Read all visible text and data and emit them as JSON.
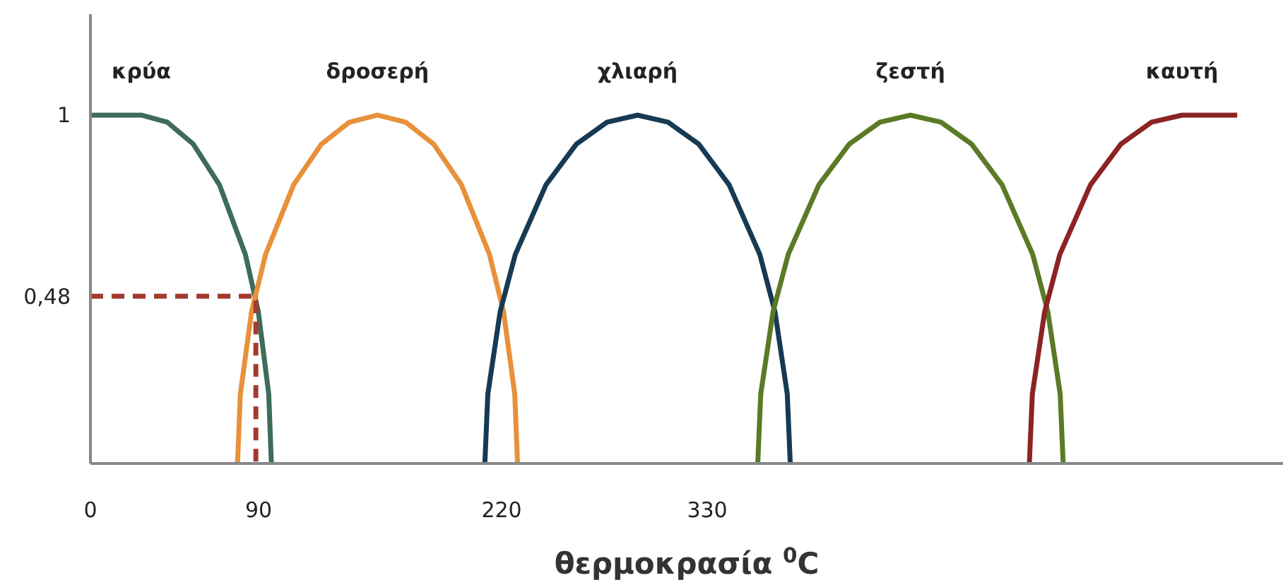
{
  "chart_data": {
    "type": "line",
    "xlabel": "θερμοκρασία $^{0}$C",
    "xlim": [
      0,
      638
    ],
    "xticks": [
      0,
      90,
      220,
      330
    ],
    "ylim": [
      0,
      1.29
    ],
    "yticks": [
      {
        "value": 0.48,
        "label": "0,48"
      },
      1
    ],
    "grid": false,
    "marker": "none",
    "line_style": "solid",
    "series": [
      {
        "name": "κρύα",
        "color": "#3e6b5a",
        "x": [
          0,
          27.2,
          41.1,
          55,
          69,
          82.9,
          89.8,
          95.4,
          96.8
        ],
        "values": [
          1,
          1,
          0.98,
          0.917,
          0.8,
          0.6,
          0.436,
          0.199,
          0
        ]
      },
      {
        "name": "δροσερή",
        "color": "#e8913a",
        "x": [
          78.7,
          80.2,
          86.2,
          93.7,
          108.7,
          123.6,
          138.6,
          153.6,
          168.6,
          183.6,
          198.5,
          213.5,
          221,
          227,
          228.5
        ],
        "values": [
          0,
          0.199,
          0.436,
          0.6,
          0.8,
          0.917,
          0.98,
          1,
          0.98,
          0.917,
          0.8,
          0.6,
          0.436,
          0.199,
          0
        ]
      },
      {
        "name": "χλιαρή",
        "color": "#173a54",
        "x": [
          211,
          212.6,
          219.2,
          227.3,
          243.7,
          260,
          276.4,
          292.7,
          309,
          325.4,
          341.7,
          358.1,
          366.2,
          372.8,
          374.4
        ],
        "values": [
          0,
          0.199,
          0.436,
          0.6,
          0.8,
          0.917,
          0.98,
          1,
          0.98,
          0.917,
          0.8,
          0.6,
          0.436,
          0.199,
          0
        ]
      },
      {
        "name": "ζεστή",
        "color": "#5a7a25",
        "x": [
          357,
          358.6,
          365.2,
          373.3,
          389.7,
          406,
          422.4,
          438.7,
          455,
          471.4,
          487.7,
          504.1,
          512.2,
          518.8,
          520.4
        ],
        "values": [
          0,
          0.199,
          0.436,
          0.6,
          0.8,
          0.917,
          0.98,
          1,
          0.98,
          0.917,
          0.8,
          0.6,
          0.436,
          0.199,
          0
        ]
      },
      {
        "name": "καυτή",
        "color": "#8c2424",
        "x": [
          502.3,
          503.9,
          510.5,
          518.6,
          535,
          551.3,
          567.7,
          584,
          613.5
        ],
        "values": [
          0,
          0.199,
          0.436,
          0.6,
          0.8,
          0.917,
          0.98,
          1,
          1
        ]
      },
      {
        "color": "#a33a2e",
        "line_style": "dashed",
        "x": [
          0,
          88.5,
          88.5
        ],
        "values": [
          0.48,
          0.48,
          0
        ]
      }
    ]
  }
}
